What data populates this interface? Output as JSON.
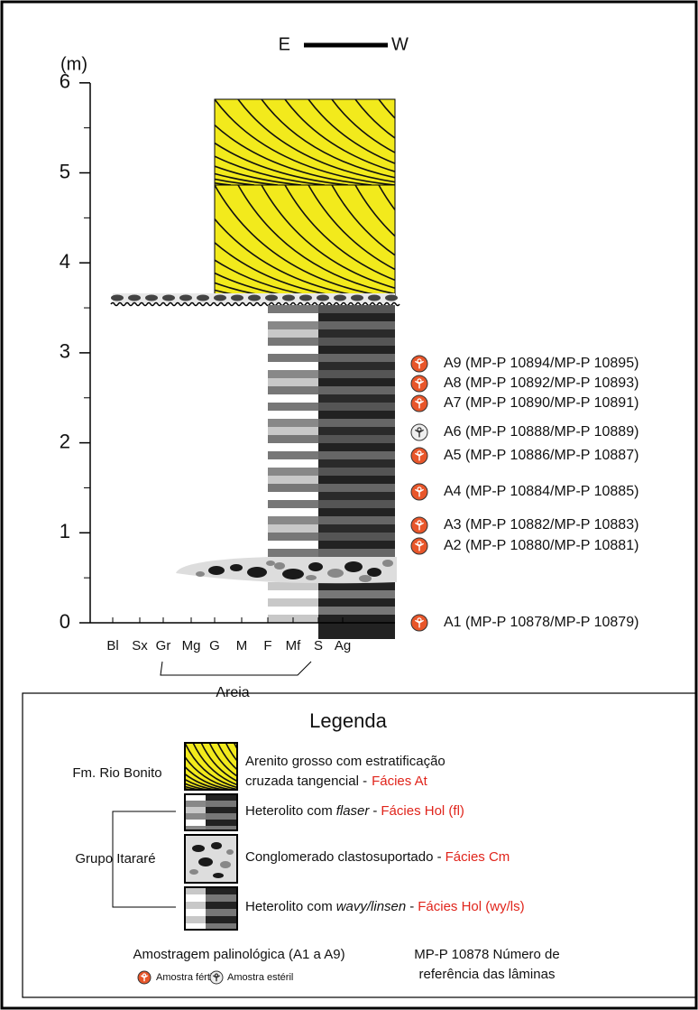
{
  "axis": {
    "label": "(m)",
    "ticks": [
      0,
      1,
      2,
      3,
      4,
      5,
      6
    ]
  },
  "orientation": {
    "left": "E",
    "right": "W"
  },
  "grain_sizes": [
    "Bl",
    "Sx",
    "Gr",
    "Mg",
    "G",
    "M",
    "F",
    "Mf",
    "S",
    "Ag"
  ],
  "grain_group": "Areia",
  "samples": [
    {
      "label": "A9 (MP-P 10894/MP-P 10895)",
      "fertile": true
    },
    {
      "label": "A8 (MP-P 10892/MP-P 10893)",
      "fertile": true
    },
    {
      "label": "A7 (MP-P 10890/MP-P 10891)",
      "fertile": true
    },
    {
      "label": "A6 (MP-P 10888/MP-P 10889)",
      "fertile": false
    },
    {
      "label": "A5 (MP-P 10886/MP-P 10887)",
      "fertile": true
    },
    {
      "label": "A4 (MP-P 10884/MP-P 10885)",
      "fertile": true
    },
    {
      "label": "A3 (MP-P 10882/MP-P 10883)",
      "fertile": true
    },
    {
      "label": "A2 (MP-P 10880/MP-P 10881)",
      "fertile": true
    },
    {
      "label": "A1 (MP-P 10878/MP-P 10879)",
      "fertile": true
    }
  ],
  "legend": {
    "title": "Legenda",
    "groups": [
      "Fm. Rio Bonito",
      "Grupo Itararé"
    ],
    "items": [
      {
        "lines": [
          "Arenito grosso com estratificação",
          "cruzada tangencial -"
        ],
        "facies": "Fácies At"
      },
      {
        "text": "Heterolito com",
        "italic": "flaser",
        "after": "-",
        "facies": "Fácies Hol (fl)"
      },
      {
        "text": "Conglomerado clastosuportado -",
        "facies": "Fácies Cm"
      },
      {
        "text": "Heterolito com",
        "italic": "wavy/linsen",
        "after": "-",
        "facies": "Fácies Hol (wy/ls)"
      }
    ],
    "sampling": "Amostragem palinológica (A1 a A9)",
    "fertile": "Amostra fértil",
    "sterile": "Amostra estéril",
    "reference": [
      "MP-P 10878 Número de",
      "referência das lâminas"
    ]
  }
}
